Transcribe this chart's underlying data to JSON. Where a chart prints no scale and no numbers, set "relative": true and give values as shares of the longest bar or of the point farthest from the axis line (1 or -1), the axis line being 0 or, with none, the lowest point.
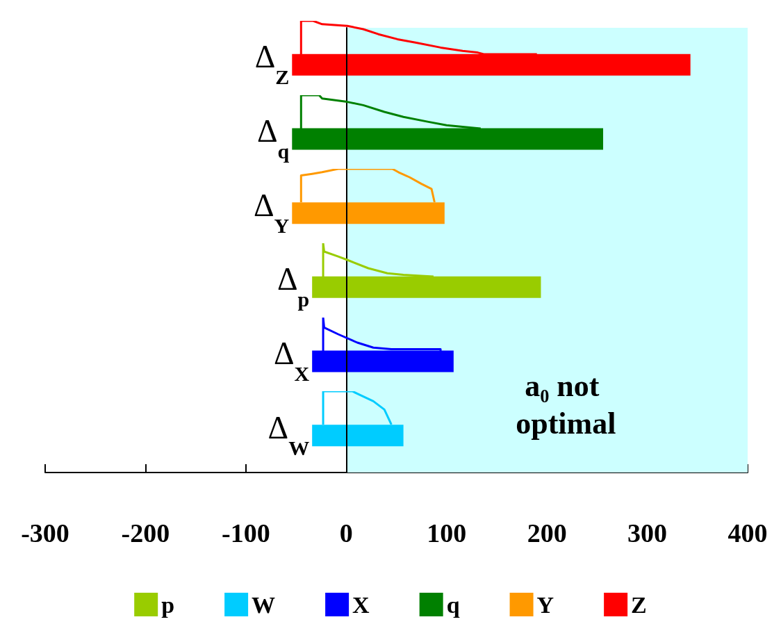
{
  "chart_data": [
    {
      "type": "bar",
      "orientation": "horizontal",
      "categories": [
        "Δ$_{Z}$",
        "Δ$_{q}$",
        "Δ$_{Y}$",
        "Δ$_{p}$",
        "Δ$_{X}$",
        "Δ$_{W}$"
      ],
      "series": [
        {
          "name": "p",
          "color": "#99cc00",
          "values": [
            null,
            null,
            null,
            228,
            null,
            null
          ],
          "base": [
            null,
            null,
            null,
            -34,
            null,
            null
          ]
        },
        {
          "name": "W",
          "color": "#00ccff",
          "values": [
            null,
            null,
            null,
            null,
            null,
            91
          ],
          "base": [
            null,
            null,
            null,
            null,
            null,
            -34
          ]
        },
        {
          "name": "X",
          "color": "#0000ff",
          "values": [
            null,
            null,
            null,
            null,
            141,
            null
          ],
          "base": [
            null,
            null,
            null,
            null,
            -34,
            null
          ]
        },
        {
          "name": "q",
          "color": "#008000",
          "values": [
            null,
            310,
            null,
            null,
            null,
            null
          ],
          "base": [
            null,
            -54,
            null,
            null,
            null,
            null
          ]
        },
        {
          "name": "Y",
          "color": "#ff9900",
          "values": [
            null,
            null,
            152,
            null,
            null,
            null
          ],
          "base": [
            null,
            null,
            -54,
            null,
            null,
            null
          ]
        },
        {
          "name": "Z",
          "color": "#ff0000",
          "values": [
            397,
            null,
            null,
            null,
            null,
            null
          ],
          "base": [
            -54,
            null,
            null,
            null,
            null,
            null
          ]
        }
      ],
      "xlim": [
        -300,
        400
      ],
      "xticks": [
        -300,
        -200,
        -100,
        0,
        100,
        200,
        300,
        400
      ],
      "bands": [
        {
          "axis": "x",
          "from": 0,
          "to": 400,
          "label": "a₀ not optimal",
          "color": "#ccffff"
        }
      ],
      "legend": "bottom",
      "grid": false
    },
    {
      "type": "line",
      "relative": true,
      "xlim": [
        -300,
        400
      ],
      "tick_labels": false,
      "x": [
        -45,
        -45,
        -33,
        -24,
        1,
        17,
        32,
        51,
        69,
        94,
        116,
        131,
        137,
        184,
        190
      ],
      "series": [
        {
          "color": "#ff0000",
          "values": [
            0,
            1,
            1,
            0.9,
            0.85,
            0.75,
            0.6,
            0.45,
            0.35,
            0.2,
            0.1,
            0.05,
            0,
            0,
            0
          ]
        }
      ]
    },
    {
      "type": "line",
      "relative": true,
      "xlim": [
        -300,
        400
      ],
      "tick_labels": false,
      "x": [
        -45,
        -45,
        -27,
        -24,
        1,
        17,
        38,
        57,
        82,
        100,
        116,
        134
      ],
      "series": [
        {
          "color": "#008000",
          "values": [
            0,
            1,
            1,
            0.9,
            0.8,
            0.7,
            0.5,
            0.35,
            0.2,
            0.1,
            0.05,
            0
          ]
        }
      ]
    },
    {
      "type": "line",
      "relative": true,
      "xlim": [
        -300,
        400
      ],
      "tick_labels": false,
      "x": [
        -45,
        -45,
        -34,
        -24,
        -8,
        46,
        52,
        63,
        75,
        85,
        88
      ],
      "series": [
        {
          "color": "#ff9900",
          "values": [
            0,
            0.8,
            0.85,
            0.9,
            1,
            1,
            0.9,
            0.75,
            0.55,
            0.4,
            0
          ]
        }
      ]
    },
    {
      "type": "line",
      "relative": true,
      "xlim": [
        -300,
        400
      ],
      "tick_labels": false,
      "x": [
        -23,
        -23,
        -22,
        -8,
        1,
        22,
        41,
        57,
        87
      ],
      "series": [
        {
          "color": "#99cc00",
          "values": [
            0,
            1,
            0.75,
            0.6,
            0.5,
            0.25,
            0.1,
            0.05,
            0
          ]
        }
      ]
    },
    {
      "type": "line",
      "relative": true,
      "xlim": [
        -300,
        400
      ],
      "tick_labels": false,
      "x": [
        -23,
        -23,
        -22,
        -8,
        11,
        27,
        45,
        94,
        94
      ],
      "series": [
        {
          "color": "#0000ff",
          "values": [
            0,
            1,
            0.7,
            0.5,
            0.25,
            0.1,
            0.05,
            0.05,
            0
          ]
        }
      ]
    },
    {
      "type": "line",
      "relative": true,
      "xlim": [
        -300,
        400
      ],
      "tick_labels": false,
      "x": [
        -23,
        -23,
        6,
        13,
        27,
        38,
        45
      ],
      "series": [
        {
          "color": "#00ccff",
          "values": [
            0,
            1,
            1,
            0.9,
            0.7,
            0.45,
            0
          ]
        }
      ]
    }
  ]
}
